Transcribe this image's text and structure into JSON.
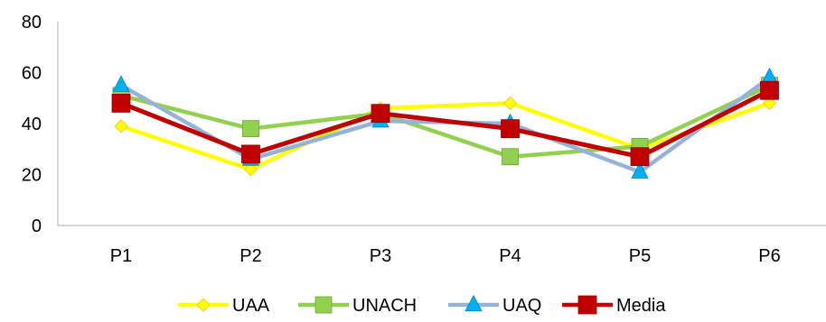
{
  "chart_data": {
    "type": "line",
    "title": "",
    "xlabel": "",
    "ylabel": "",
    "categories": [
      "P1",
      "P2",
      "P3",
      "P4",
      "P5",
      "P6"
    ],
    "ylim": [
      0,
      80
    ],
    "yticks": [
      "0",
      "20",
      "40",
      "60",
      "80"
    ],
    "grid": false,
    "legend_position": "bottom",
    "series": [
      {
        "name": "UAA",
        "color": "#FFFF00",
        "marker": "diamond",
        "values": [
          39,
          22,
          46,
          48,
          30,
          48
        ]
      },
      {
        "name": "UNACH",
        "color": "#92D050",
        "marker": "square",
        "values": [
          51,
          38,
          44,
          27,
          31,
          55
        ]
      },
      {
        "name": "UAQ",
        "color": "#95B3D7",
        "marker": "triangle",
        "marker_color": "#00B0F0",
        "values": [
          55,
          26,
          41,
          40,
          21,
          58
        ]
      },
      {
        "name": "Media",
        "color": "#C00000",
        "marker": "square",
        "values": [
          48,
          28,
          44,
          38,
          27,
          53
        ]
      }
    ]
  }
}
